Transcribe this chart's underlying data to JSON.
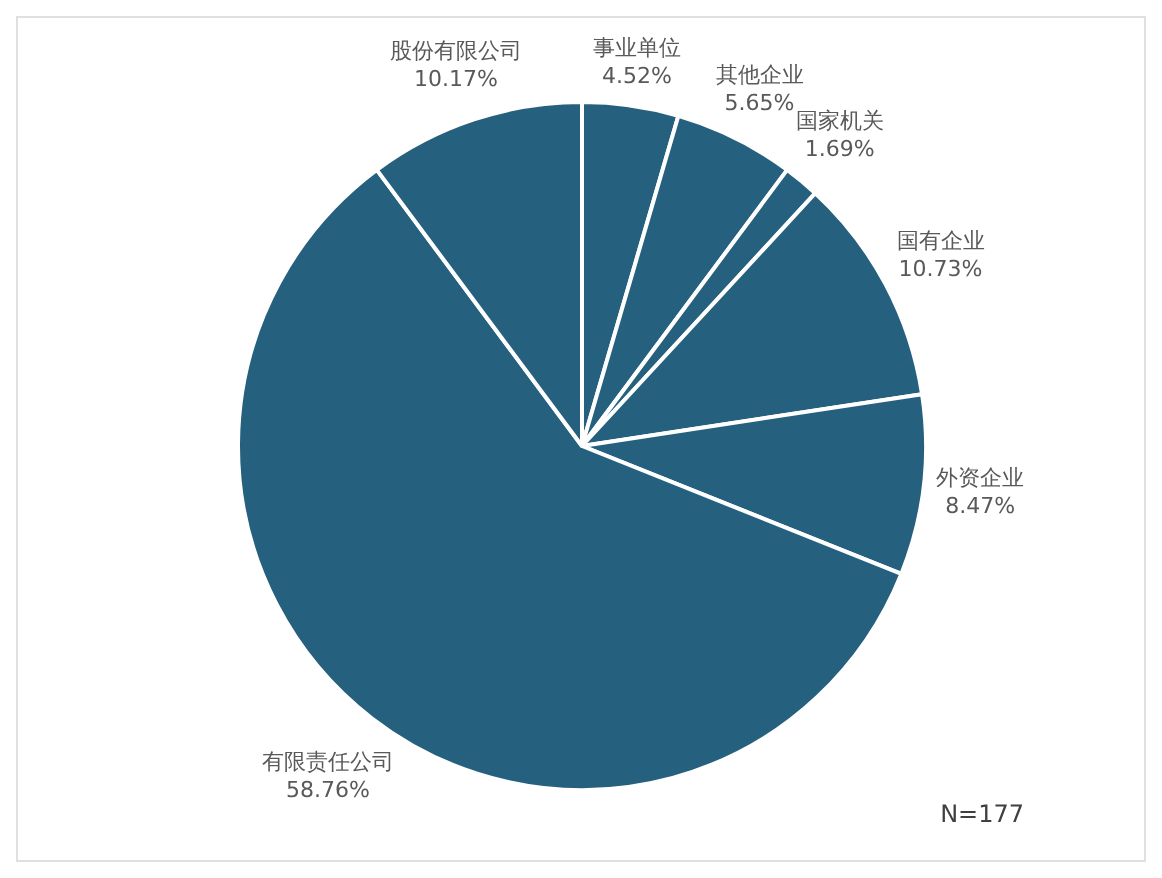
{
  "chart_data": {
    "type": "pie",
    "categories": [
      "事业单位",
      "其他企业",
      "国家机关",
      "国有企业",
      "外资企业",
      "有限责任公司",
      "股份有限公司"
    ],
    "values": [
      4.52,
      5.65,
      1.69,
      10.73,
      8.47,
      58.76,
      10.17
    ],
    "value_labels": [
      "4.52%",
      "5.65%",
      "1.69%",
      "10.73%",
      "8.47%",
      "58.76%",
      "10.17%"
    ],
    "colors": [
      "#26607f",
      "#26607f",
      "#26607f",
      "#26607f",
      "#26607f",
      "#26607f",
      "#26607f"
    ],
    "annotations": [
      "N=177"
    ],
    "legend": false
  }
}
